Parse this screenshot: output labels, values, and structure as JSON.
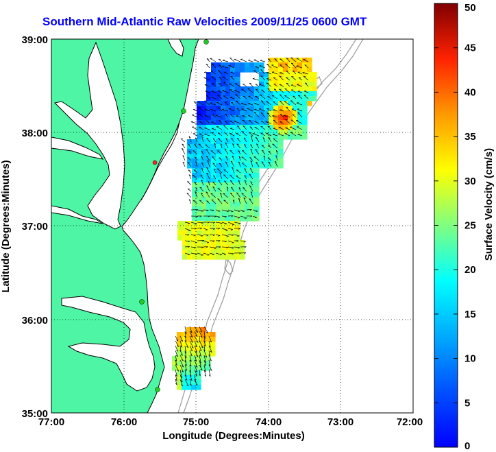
{
  "title": "Southern Mid-Atlantic Raw Velocities 2009/11/25 0600 GMT",
  "xlabel": "Longitude (Degrees:Minutes)",
  "ylabel": "Latitude (Degrees:Minutes)",
  "colorbar_label": "Surface Velocity (cm/s)",
  "x_ticks": [
    "77:00",
    "76:00",
    "75:00",
    "74:00",
    "73:00",
    "72:00"
  ],
  "y_ticks": [
    "39:00",
    "38:00",
    "37:00",
    "36:00",
    "35:00"
  ],
  "cb_ticks": [
    "50",
    "45",
    "40",
    "35",
    "30",
    "25",
    "20",
    "15",
    "10",
    "5",
    "0"
  ],
  "colors": {
    "land": "#4ef5a4",
    "title": "#0000ff",
    "coast": "#000000",
    "bathymetry": "#999999",
    "station": "#22cc22",
    "station_highlight": "#ff2222"
  },
  "map": {
    "lon_range": [
      -77,
      -72
    ],
    "lat_range": [
      35,
      39
    ],
    "velocity_range_cm_s": [
      0,
      50
    ],
    "colormap": "jet",
    "grid": true
  }
}
